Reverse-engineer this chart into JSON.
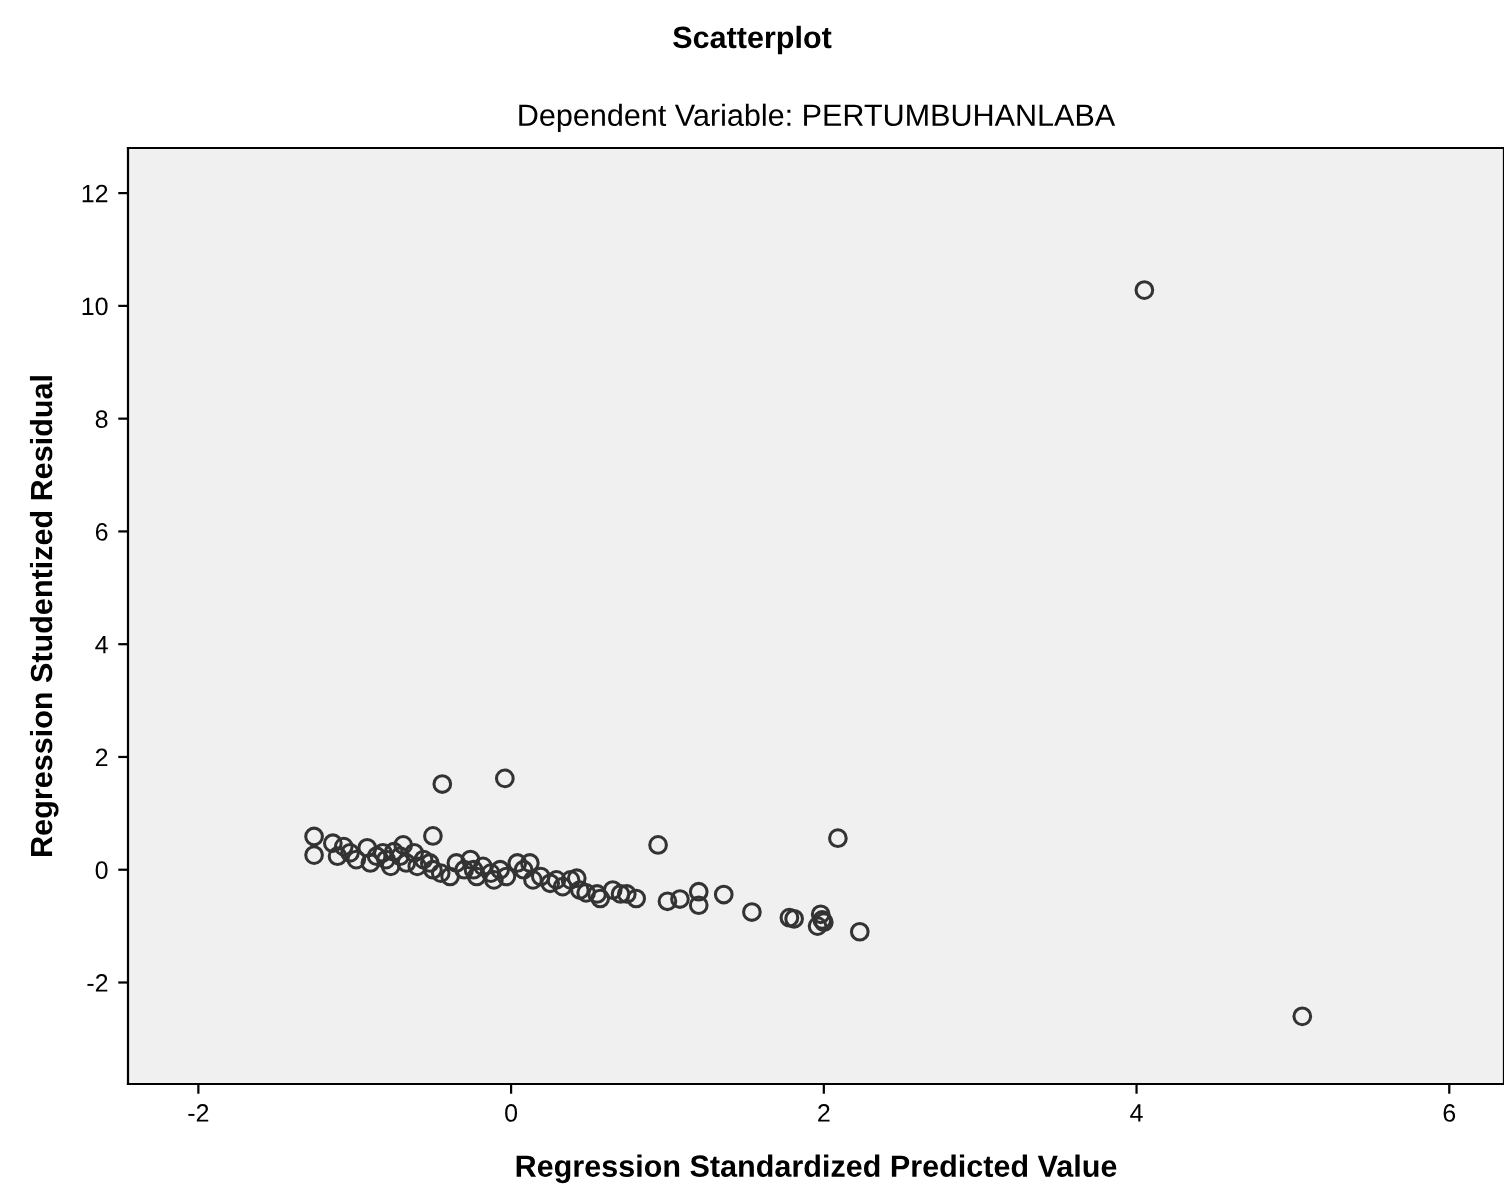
{
  "chart_data": {
    "type": "scatter",
    "title": "Scatterplot",
    "subtitle": "Dependent Variable: PERTUMBUHANLABA",
    "xlabel": "Regression Standardized Predicted Value",
    "ylabel": "Regression Studentized Residual",
    "xlim": [
      -2.45,
      6.35
    ],
    "ylim": [
      -3.8,
      12.8
    ],
    "xticks": [
      -2,
      0,
      2,
      4,
      6
    ],
    "yticks": [
      -2,
      0,
      2,
      4,
      6,
      8,
      10,
      12
    ],
    "grid": false,
    "marker": "circle",
    "series": [
      {
        "color": "#333333",
        "x": [
          4.05,
          5.06,
          2.09,
          1.99,
          2.23,
          -0.44,
          -0.04,
          -0.5,
          0.94,
          -1.26,
          -1.26,
          1.0,
          1.08,
          1.2,
          1.2,
          1.36,
          1.54,
          1.78,
          1.81,
          1.98,
          1.96,
          2.0,
          -1.14,
          -1.11,
          -1.07,
          -1.03,
          -0.99,
          -0.92,
          -0.9,
          -0.86,
          -0.82,
          -0.8,
          -0.77,
          -0.75,
          -0.71,
          -0.69,
          -0.67,
          -0.62,
          -0.6,
          -0.56,
          -0.52,
          -0.5,
          -0.45,
          -0.39,
          -0.35,
          -0.3,
          -0.26,
          -0.24,
          -0.22,
          -0.18,
          -0.13,
          -0.11,
          -0.07,
          -0.03,
          0.04,
          0.08,
          0.12,
          0.14,
          0.19,
          0.25,
          0.29,
          0.33,
          0.38,
          0.42,
          0.44,
          0.48,
          0.55,
          0.57,
          0.65,
          0.7,
          0.74,
          0.8
        ],
        "values": [
          10.28,
          -2.6,
          0.56,
          -0.89,
          -1.1,
          1.52,
          1.62,
          0.6,
          0.44,
          0.59,
          0.26,
          -0.56,
          -0.52,
          -0.39,
          -0.63,
          -0.44,
          -0.75,
          -0.85,
          -0.87,
          -0.79,
          -1.0,
          -0.93,
          0.47,
          0.24,
          0.41,
          0.3,
          0.18,
          0.39,
          0.12,
          0.24,
          0.3,
          0.18,
          0.06,
          0.32,
          0.24,
          0.44,
          0.12,
          0.3,
          0.06,
          0.18,
          0.12,
          0.0,
          -0.06,
          -0.12,
          0.12,
          0.0,
          0.18,
          0.0,
          -0.12,
          0.06,
          -0.06,
          -0.18,
          0.0,
          -0.12,
          0.12,
          0.0,
          0.12,
          -0.18,
          -0.12,
          -0.24,
          -0.18,
          -0.3,
          -0.18,
          -0.15,
          -0.36,
          -0.41,
          -0.43,
          -0.51,
          -0.36,
          -0.43,
          -0.43,
          -0.51
        ]
      }
    ]
  }
}
